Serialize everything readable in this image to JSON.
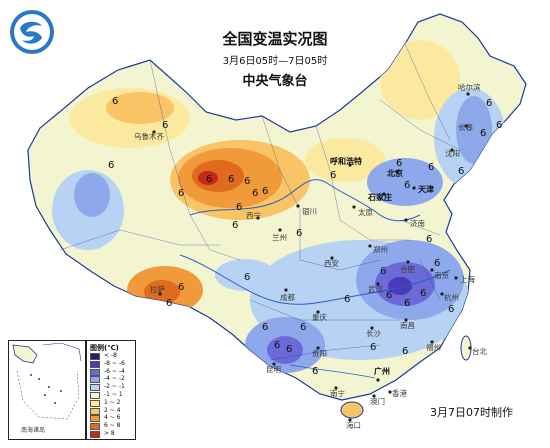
{
  "title": "全国变温实况图",
  "time_range": "3月6日05时—7日05时",
  "organization": "中央气象台",
  "made_time": "3月7日07时制作",
  "inset_label": "南海诸岛",
  "legend": {
    "title": "图例(℃)",
    "items": [
      {
        "label": "< -8",
        "color": "#2a1a80"
      },
      {
        "label": "-8 ~ -6",
        "color": "#4a3ab8"
      },
      {
        "label": "-6 ~ -4",
        "color": "#6a6ad8"
      },
      {
        "label": "-4 ~ -2",
        "color": "#8ea8ec"
      },
      {
        "label": "-2 ~ -1",
        "color": "#b8d2f4"
      },
      {
        "label": "-1 ~ 1",
        "color": "#f2f5d0"
      },
      {
        "label": "1 ~ 2",
        "color": "#fce9a0"
      },
      {
        "label": "2 ~ 4",
        "color": "#f9c466"
      },
      {
        "label": "4 ~ 6",
        "color": "#f09a3a"
      },
      {
        "label": "6 ~ 8",
        "color": "#e06a1e"
      },
      {
        "label": "> 8",
        "color": "#c8281a"
      }
    ]
  },
  "cities": [
    {
      "name": "乌鲁木齐",
      "bold": false
    },
    {
      "name": "哈尔滨",
      "bold": false
    },
    {
      "name": "长春",
      "bold": false
    },
    {
      "name": "沈阳",
      "bold": false
    },
    {
      "name": "呼和浩特",
      "bold": true
    },
    {
      "name": "北京",
      "bold": true
    },
    {
      "name": "天津",
      "bold": true
    },
    {
      "name": "石家庄",
      "bold": true
    },
    {
      "name": "太原",
      "bold": false
    },
    {
      "name": "银川",
      "bold": false
    },
    {
      "name": "西宁",
      "bold": false
    },
    {
      "name": "兰州",
      "bold": false
    },
    {
      "name": "济南",
      "bold": false
    },
    {
      "name": "郑州",
      "bold": false
    },
    {
      "name": "西安",
      "bold": false
    },
    {
      "name": "合肥",
      "bold": false
    },
    {
      "name": "南京",
      "bold": false
    },
    {
      "name": "上海",
      "bold": false
    },
    {
      "name": "武汉",
      "bold": false
    },
    {
      "name": "杭州",
      "bold": false
    },
    {
      "name": "成都",
      "bold": false
    },
    {
      "name": "重庆",
      "bold": false
    },
    {
      "name": "拉萨",
      "bold": false
    },
    {
      "name": "长沙",
      "bold": false
    },
    {
      "name": "南昌",
      "bold": false
    },
    {
      "name": "福州",
      "bold": false
    },
    {
      "name": "贵阳",
      "bold": false
    },
    {
      "name": "昆明",
      "bold": false
    },
    {
      "name": "南宁",
      "bold": false
    },
    {
      "name": "广州",
      "bold": true
    },
    {
      "name": "台北",
      "bold": false
    },
    {
      "name": "香港",
      "bold": false
    },
    {
      "name": "澳门",
      "bold": false
    },
    {
      "name": "海口",
      "bold": false
    }
  ],
  "value_label": "6",
  "colors": {
    "very_cold": "#2a1a80",
    "cold": "#6a6ad8",
    "cool": "#8ea8ec",
    "slightly_cool": "#b8d2f4",
    "neutral": "#f2f5d0",
    "slightly_warm": "#fce9a0",
    "warm": "#f9c466",
    "hot": "#f09a3a",
    "very_hot": "#c8281a",
    "border": "#1a3a9a"
  }
}
